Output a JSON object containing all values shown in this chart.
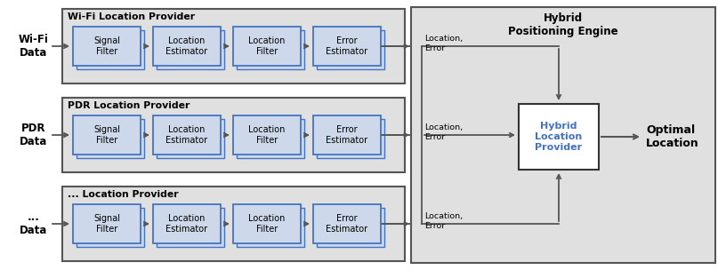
{
  "fig_width": 8.07,
  "fig_height": 3.04,
  "dpi": 100,
  "light_blue": "#cdd9ea",
  "white": "#ffffff",
  "blue_edge": "#4472c4",
  "gray_fill": "#e0e0e0",
  "gray_edge": "#555555",
  "dark_edge": "#333333",
  "arrow_color": "#555555",
  "text_color": "#000000",
  "rows": [
    {
      "label": "Wi-Fi\nData",
      "title": "Wi-Fi Location Provider"
    },
    {
      "label": "PDR\nData",
      "title": "PDR Location Provider"
    },
    {
      "label": "...\nData",
      "title": "... Location Provider"
    }
  ],
  "inner_labels": [
    "Signal\nFilter",
    "Location\nEstimator",
    "Location\nFilter",
    "Error\nEstimator"
  ],
  "hybrid_title": "Hybrid\nPositioning Engine",
  "hybrid_box_label": "Hybrid\nLocation\nProvider",
  "optimal_label": "Optimal\nLocation"
}
